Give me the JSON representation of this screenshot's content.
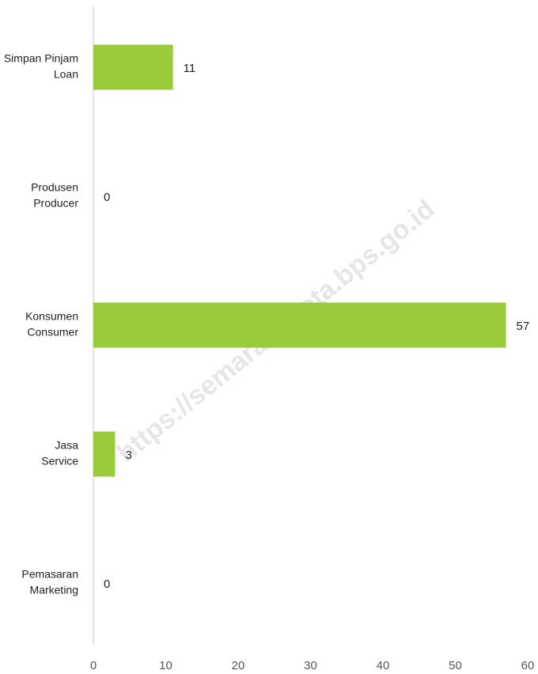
{
  "chart_data": {
    "type": "barh",
    "categories": [
      [
        "Simpan Pinjam",
        "Loan"
      ],
      [
        "Produsen",
        "Producer"
      ],
      [
        "Konsumen",
        "Consumer"
      ],
      [
        "Jasa",
        "Service"
      ],
      [
        "Pemasaran",
        "Marketing"
      ]
    ],
    "values": [
      11,
      0,
      57,
      3,
      0
    ],
    "color": "#9acb3c",
    "xlim": [
      0,
      60
    ],
    "xticks": [
      0,
      10,
      20,
      30,
      40,
      50,
      60
    ],
    "grid": false,
    "annotations": [
      "https://semarangkota.bps.go.id"
    ]
  }
}
